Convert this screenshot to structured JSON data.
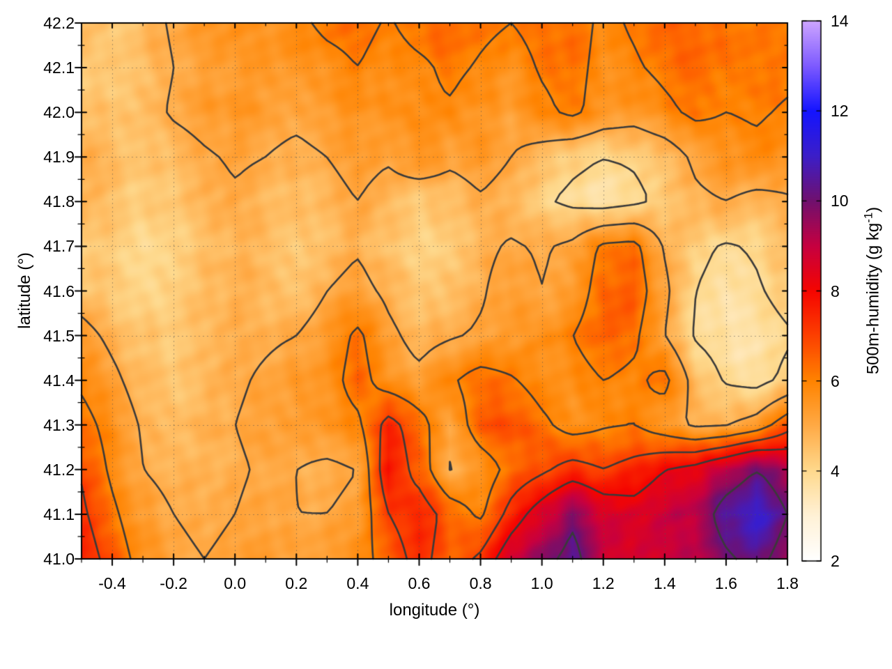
{
  "chart_data": {
    "type": "heatmap",
    "title": "",
    "xlabel": "longitude (°)",
    "ylabel": "latitude (°)",
    "xlim": [
      -0.5,
      1.8
    ],
    "ylim": [
      41.0,
      42.2
    ],
    "x_tick_labels": [
      "-0.4",
      "-0.2",
      "0.0",
      "0.2",
      "0.4",
      "0.6",
      "0.8",
      "1.0",
      "1.2",
      "1.4",
      "1.6",
      "1.8"
    ],
    "y_tick_labels": [
      "41.0",
      "41.1",
      "41.2",
      "41.3",
      "41.4",
      "41.5",
      "41.6",
      "41.7",
      "41.8",
      "41.9",
      "42.0",
      "42.1",
      "42.2"
    ],
    "x_minor_step": 0.1,
    "y_minor_step": 0.05,
    "grid": true,
    "grid_lons": [
      -0.4,
      -0.2,
      0.0,
      0.2,
      0.4,
      0.6,
      0.8,
      1.0,
      1.2,
      1.4,
      1.6
    ],
    "grid_lats": [
      41.1,
      41.3,
      41.5,
      41.7,
      41.9,
      42.1
    ],
    "contour_levels": [
      4,
      5,
      6,
      7,
      8,
      10
    ],
    "contour_color": "#3a3a3a",
    "colorbar": {
      "label_prefix": "500m-humidity (g kg",
      "label_superscript": "-1",
      "label_suffix": ")",
      "min": 2,
      "max": 14,
      "tick_labels": [
        "2",
        "4",
        "6",
        "8",
        "10",
        "12",
        "14"
      ]
    },
    "palette_stops": [
      [
        2,
        "#ffffff"
      ],
      [
        3,
        "#fff1d6"
      ],
      [
        4,
        "#fed98d"
      ],
      [
        5,
        "#ffaa46"
      ],
      [
        6,
        "#ff8300"
      ],
      [
        7,
        "#fc4000"
      ],
      [
        8,
        "#f50500"
      ],
      [
        9,
        "#c60040"
      ],
      [
        10,
        "#70106e"
      ],
      [
        11,
        "#3c1ec8"
      ],
      [
        12,
        "#1414ff"
      ],
      [
        13,
        "#7d5aff"
      ],
      [
        14,
        "#cda5ff"
      ]
    ],
    "grid_cols_lon": [
      -0.5,
      -0.4,
      -0.3,
      -0.2,
      -0.1,
      0.0,
      0.1,
      0.2,
      0.3,
      0.4,
      0.5,
      0.6,
      0.7,
      0.8,
      0.9,
      1.0,
      1.1,
      1.2,
      1.3,
      1.4,
      1.5,
      1.6,
      1.7,
      1.8
    ],
    "grid_rows_lat": [
      42.2,
      42.1,
      42.0,
      41.9,
      41.8,
      41.7,
      41.6,
      41.5,
      41.4,
      41.3,
      41.2,
      41.1,
      41.0
    ],
    "humidity_g_per_kg": [
      [
        4.5,
        4.3,
        4.7,
        5.1,
        5.4,
        5.5,
        5.6,
        5.8,
        6.2,
        6.3,
        5.9,
        6.4,
        6.5,
        6.2,
        6.0,
        6.3,
        6.4,
        5.8,
        6.1,
        6.4,
        6.5,
        6.3,
        6.2,
        6.0
      ],
      [
        4.4,
        4.2,
        4.6,
        5.0,
        5.2,
        5.3,
        5.4,
        5.5,
        5.7,
        6.0,
        5.6,
        5.8,
        6.2,
        5.9,
        5.6,
        6.1,
        6.3,
        5.7,
        5.9,
        6.2,
        6.4,
        6.1,
        6.3,
        6.2
      ],
      [
        4.6,
        4.4,
        4.7,
        5.1,
        5.3,
        5.5,
        5.3,
        5.2,
        5.4,
        5.6,
        5.5,
        5.8,
        5.9,
        5.5,
        5.3,
        5.8,
        6.2,
        5.6,
        5.4,
        5.8,
        6.2,
        6.0,
        6.1,
        5.9
      ],
      [
        4.9,
        4.7,
        4.4,
        4.6,
        4.9,
        5.1,
        5.0,
        4.8,
        5.0,
        5.3,
        5.1,
        5.7,
        5.2,
        5.4,
        5.0,
        4.6,
        4.2,
        4.0,
        4.1,
        4.4,
        5.2,
        5.6,
        5.8,
        5.5
      ],
      [
        4.7,
        4.5,
        4.2,
        4.4,
        4.7,
        4.9,
        4.7,
        4.5,
        4.7,
        5.0,
        4.6,
        4.3,
        4.5,
        4.9,
        4.6,
        4.1,
        3.8,
        3.6,
        3.8,
        4.2,
        4.8,
        5.0,
        4.7,
        4.9
      ],
      [
        4.4,
        4.2,
        4.0,
        4.2,
        4.5,
        4.8,
        4.6,
        4.4,
        4.6,
        4.9,
        4.4,
        4.1,
        4.3,
        4.8,
        5.1,
        4.9,
        5.2,
        6.2,
        6.3,
        4.9,
        4.2,
        3.9,
        4.1,
        4.6
      ],
      [
        4.6,
        4.3,
        4.1,
        4.3,
        4.6,
        4.9,
        4.7,
        4.5,
        5.0,
        5.3,
        4.8,
        4.4,
        4.6,
        4.9,
        5.4,
        5.0,
        5.4,
        6.5,
        6.6,
        5.2,
        4.0,
        3.7,
        3.9,
        4.3
      ],
      [
        5.3,
        4.8,
        4.4,
        4.3,
        4.5,
        4.8,
        4.9,
        5.0,
        5.4,
        6.2,
        5.2,
        4.7,
        4.9,
        5.1,
        5.2,
        5.6,
        6.0,
        6.6,
        6.2,
        5.0,
        3.9,
        3.6,
        3.6,
        3.9
      ],
      [
        5.8,
        5.2,
        4.6,
        4.4,
        4.6,
        4.9,
        5.1,
        5.3,
        5.6,
        6.4,
        5.5,
        5.2,
        5.9,
        6.4,
        6.1,
        5.6,
        5.6,
        6.0,
        5.8,
        6.3,
        4.6,
        3.9,
        3.7,
        4.2
      ],
      [
        6.4,
        5.6,
        4.9,
        4.7,
        4.8,
        5.0,
        5.2,
        5.4,
        5.6,
        5.8,
        7.4,
        6.4,
        5.2,
        6.6,
        6.9,
        6.2,
        5.6,
        5.9,
        6.0,
        5.4,
        4.8,
        4.9,
        5.4,
        6.6
      ],
      [
        6.9,
        5.8,
        5.0,
        4.8,
        4.7,
        4.9,
        5.1,
        5.0,
        4.8,
        5.0,
        7.8,
        6.6,
        4.9,
        5.4,
        6.3,
        6.8,
        7.4,
        7.0,
        7.4,
        8.0,
        8.4,
        9.2,
        10.0,
        9.2
      ],
      [
        7.2,
        6.2,
        5.3,
        5.0,
        4.8,
        5.0,
        5.2,
        5.0,
        5.0,
        5.2,
        7.0,
        7.6,
        6.6,
        5.8,
        7.4,
        8.6,
        9.8,
        8.8,
        8.4,
        8.8,
        9.2,
        10.6,
        11.2,
        10.0
      ],
      [
        7.6,
        6.6,
        5.6,
        5.2,
        5.0,
        5.2,
        5.3,
        5.1,
        5.4,
        5.6,
        6.4,
        7.4,
        6.4,
        7.2,
        8.8,
        9.6,
        10.4,
        9.0,
        8.6,
        8.8,
        9.0,
        9.8,
        10.4,
        9.4
      ]
    ]
  }
}
